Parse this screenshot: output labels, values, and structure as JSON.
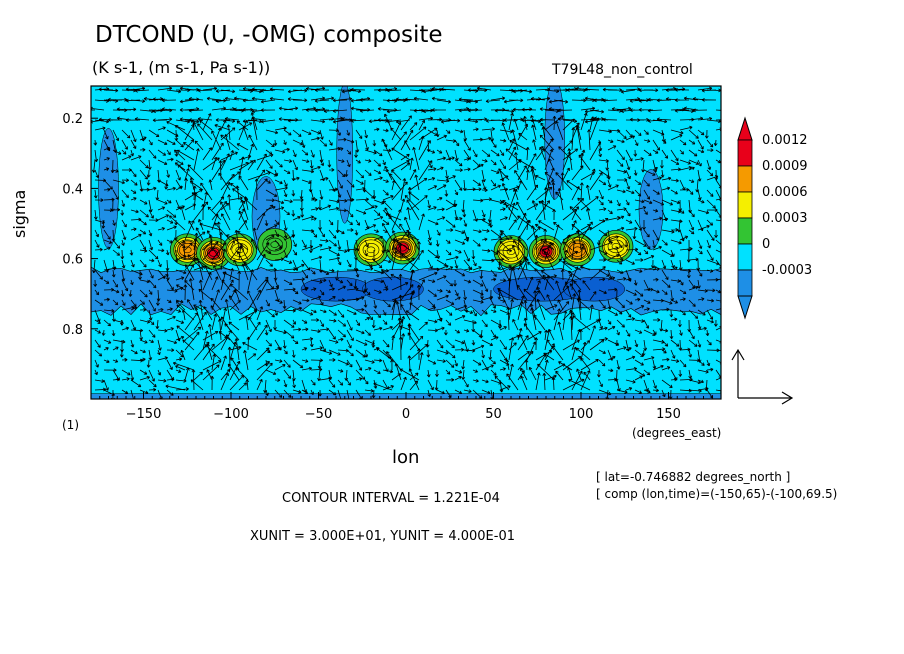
{
  "chart_data": {
    "type": "heatmap",
    "title": "DTCOND (U, -OMG) composite",
    "subtitle": "(K s-1, (m s-1, Pa s-1))",
    "run_name": "T79L48_non_control",
    "xlabel": "lon",
    "x_units": "(degrees_east)",
    "ylabel": "sigma",
    "panel_label": "(1)",
    "xlim": [
      -180,
      180
    ],
    "ylim": [
      1.0,
      0.02
    ],
    "x_ticks": [
      -150,
      -100,
      -50,
      0,
      50,
      100,
      150
    ],
    "x_tick_labels": [
      "−150",
      "−100",
      "−50",
      "0",
      "50",
      "100",
      "150"
    ],
    "y_ticks": [
      0.2,
      0.4,
      0.6,
      0.8
    ],
    "y_tick_labels": [
      "0.2",
      "0.4",
      "0.6",
      "0.8"
    ],
    "colorbar": {
      "levels": [
        "0.0012",
        "0.0009",
        "0.0006",
        "0.0003",
        "0",
        "-0.0003"
      ],
      "colors": [
        "#e8001a",
        "#f59a00",
        "#f5ef00",
        "#33c433",
        "#00e1ff",
        "#1e8fe6"
      ]
    },
    "field_colors": {
      "background": "#00e1ff",
      "negative": "#1e8fe6",
      "negative_strong": "#0a5fd1"
    },
    "heating_cells": [
      {
        "lon": -125,
        "sigma": 0.575,
        "peak": 0.0009
      },
      {
        "lon": -110,
        "sigma": 0.585,
        "peak": 0.0012
      },
      {
        "lon": -95,
        "sigma": 0.575,
        "peak": 0.0006
      },
      {
        "lon": -75,
        "sigma": 0.56,
        "peak": 0.0003
      },
      {
        "lon": -20,
        "sigma": 0.575,
        "peak": 0.0006
      },
      {
        "lon": -2,
        "sigma": 0.57,
        "peak": 0.0012
      },
      {
        "lon": 60,
        "sigma": 0.58,
        "peak": 0.0006
      },
      {
        "lon": 80,
        "sigma": 0.58,
        "peak": 0.0012
      },
      {
        "lon": 98,
        "sigma": 0.575,
        "peak": 0.0009
      },
      {
        "lon": 120,
        "sigma": 0.565,
        "peak": 0.0006
      }
    ],
    "cooling_layer": {
      "sigma_top": 0.63,
      "sigma_bottom": 0.74,
      "min": -0.0003
    },
    "annotations": {
      "contour_interval": "CONTOUR INTERVAL = 1.221E-04",
      "units": "XUNIT = 3.000E+01, YUNIT = 4.000E-01",
      "lat": "[ lat=-0.746882 degrees_north ]",
      "comp": "[ comp (lon,time)=(-150,65)-(-100,69.5)"
    }
  }
}
